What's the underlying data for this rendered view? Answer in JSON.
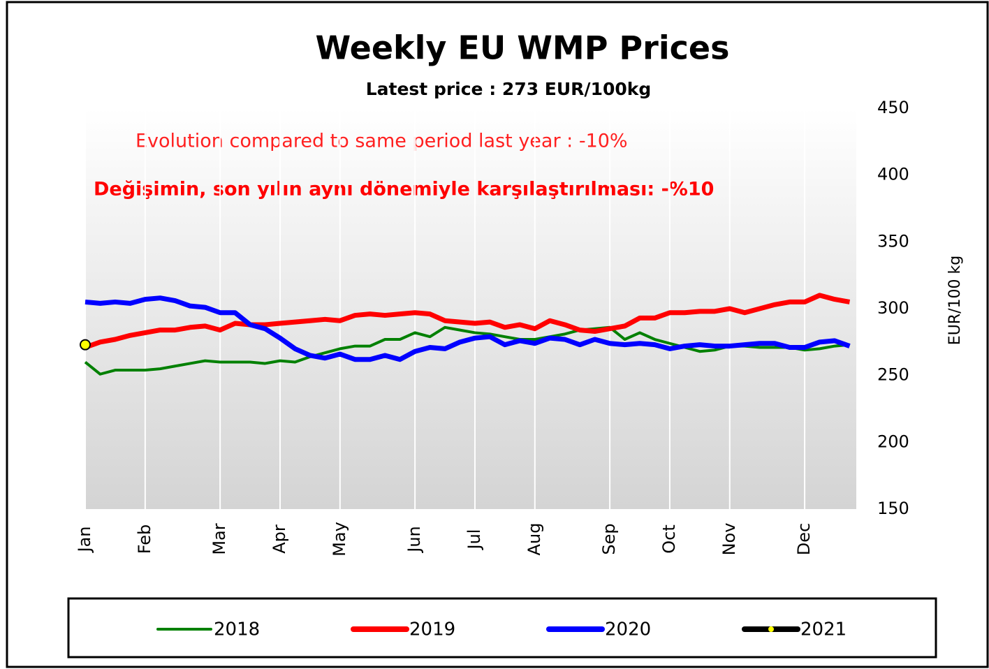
{
  "chart_data": {
    "type": "line",
    "title": "Weekly EU WMP Prices",
    "subtitle": "Latest price : 273 EUR/100kg",
    "annotations": [
      "Evolution compared to same period last year :  -10%",
      "Değişimin,  son  yılın aynı dönemiyle  karşılaştırılması: -%10"
    ],
    "y_label": "EUR/100 kg",
    "categories": [
      "Jan",
      null,
      null,
      null,
      "Feb",
      null,
      null,
      null,
      null,
      "Mar",
      null,
      null,
      null,
      "Apr",
      null,
      null,
      null,
      "May",
      null,
      null,
      null,
      null,
      "Jun",
      null,
      null,
      null,
      "Jul",
      null,
      null,
      null,
      "Aug",
      null,
      null,
      null,
      null,
      "Sep",
      null,
      null,
      null,
      "Oct",
      null,
      null,
      null,
      "Nov",
      null,
      null,
      null,
      null,
      "Dec",
      null,
      null,
      null
    ],
    "series": [
      {
        "name": "2018",
        "color": "#008000",
        "values": [
          260,
          251,
          254,
          254,
          254,
          255,
          257,
          259,
          261,
          260,
          260,
          260,
          259,
          261,
          260,
          264,
          267,
          270,
          272,
          272,
          277,
          277,
          282,
          279,
          286,
          284,
          282,
          281,
          279,
          277,
          277,
          279,
          281,
          284,
          285,
          286,
          277,
          282,
          277,
          274,
          271,
          268,
          269,
          272,
          272,
          271,
          271,
          271,
          269,
          270,
          272,
          273
        ]
      },
      {
        "name": "2019",
        "color": "#ff0000",
        "values": [
          271,
          275,
          277,
          280,
          282,
          284,
          284,
          286,
          287,
          284,
          289,
          288,
          288,
          289,
          290,
          291,
          292,
          291,
          295,
          296,
          295,
          296,
          297,
          296,
          291,
          290,
          289,
          290,
          286,
          288,
          285,
          291,
          288,
          284,
          283,
          285,
          287,
          293,
          293,
          297,
          297,
          298,
          298,
          300,
          297,
          300,
          303,
          305,
          305,
          310,
          307,
          305
        ]
      },
      {
        "name": "2020",
        "color": "#0000ff",
        "values": [
          305,
          304,
          305,
          304,
          307,
          308,
          306,
          302,
          301,
          297,
          297,
          288,
          285,
          278,
          270,
          265,
          263,
          266,
          262,
          262,
          265,
          262,
          268,
          271,
          270,
          275,
          278,
          279,
          273,
          276,
          274,
          278,
          277,
          273,
          277,
          274,
          273,
          274,
          273,
          270,
          272,
          273,
          272,
          272,
          273,
          274,
          274,
          271,
          271,
          275,
          276,
          272
        ]
      },
      {
        "name": "2021",
        "color": "#000000",
        "marker_color": "#ffff00",
        "values": [
          273,
          null,
          null,
          null,
          null,
          null,
          null,
          null,
          null,
          null,
          null,
          null,
          null,
          null,
          null,
          null,
          null,
          null,
          null,
          null,
          null,
          null,
          null,
          null,
          null,
          null,
          null,
          null,
          null,
          null,
          null,
          null,
          null,
          null,
          null,
          null,
          null,
          null,
          null,
          null,
          null,
          null,
          null,
          null,
          null,
          null,
          null,
          null,
          null,
          null,
          null,
          null
        ]
      }
    ],
    "ylim": [
      150,
      450
    ],
    "yticks": [
      150,
      200,
      250,
      300,
      350,
      400,
      450
    ],
    "y_axis_side": "right",
    "grid": false
  }
}
